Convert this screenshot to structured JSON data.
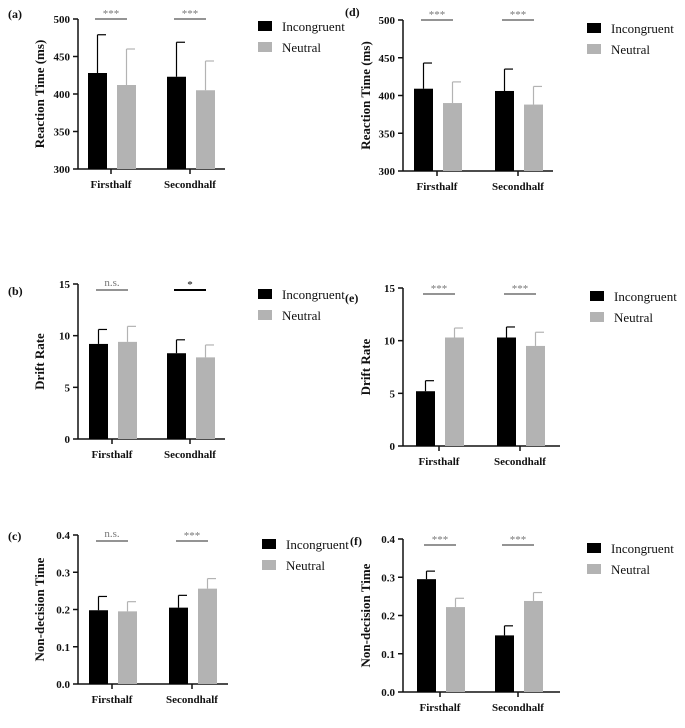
{
  "colors": {
    "Incongruent": "#000000",
    "Neutral": "#b3b3b3",
    "significance_text": "#777777"
  },
  "chart_data": [
    {
      "panel": "(a)",
      "type": "bar",
      "ylabel": "Reaction Time (ms)",
      "ylim": [
        300,
        500
      ],
      "yticks": [
        "300",
        "350",
        "400",
        "450",
        "500"
      ],
      "categories": [
        "Firsthalf",
        "Secondhalf"
      ],
      "series": [
        {
          "name": "Incongruent",
          "values": [
            428,
            423
          ],
          "error": [
            51,
            46
          ]
        },
        {
          "name": "Neutral",
          "values": [
            412,
            405
          ],
          "error": [
            48,
            39
          ]
        }
      ],
      "significance": [
        "***",
        "***"
      ],
      "legend": "right"
    },
    {
      "panel": "(b)",
      "type": "bar",
      "ylabel": "Drift Rate",
      "ylim": [
        0,
        15
      ],
      "yticks": [
        "0",
        "5",
        "10",
        "15"
      ],
      "categories": [
        "Firsthalf",
        "Secondhalf"
      ],
      "series": [
        {
          "name": "Incongruent",
          "values": [
            9.2,
            8.3
          ],
          "error": [
            1.4,
            1.3
          ]
        },
        {
          "name": "Neutral",
          "values": [
            9.4,
            7.9
          ],
          "error": [
            1.5,
            1.2
          ]
        }
      ],
      "significance": [
        "n.s.",
        "*"
      ],
      "legend": "right"
    },
    {
      "panel": "(c)",
      "type": "bar",
      "ylabel": "Non-decision Time",
      "ylim": [
        0,
        0.4
      ],
      "yticks": [
        "0.0",
        "0.1",
        "0.2",
        "0.3",
        "0.4"
      ],
      "categories": [
        "Firsthalf",
        "Secondhalf"
      ],
      "series": [
        {
          "name": "Incongruent",
          "values": [
            0.198,
            0.205
          ],
          "error": [
            0.037,
            0.033
          ]
        },
        {
          "name": "Neutral",
          "values": [
            0.195,
            0.256
          ],
          "error": [
            0.026,
            0.027
          ]
        }
      ],
      "significance": [
        "n.s.",
        "***"
      ],
      "legend": "right"
    },
    {
      "panel": "(d)",
      "type": "bar",
      "ylabel": "Reaction Time (ms)",
      "ylim": [
        300,
        500
      ],
      "yticks": [
        "300",
        "350",
        "400",
        "450",
        "500"
      ],
      "categories": [
        "Firsthalf",
        "Secondhalf"
      ],
      "series": [
        {
          "name": "Incongruent",
          "values": [
            409,
            406
          ],
          "error": [
            34,
            29
          ]
        },
        {
          "name": "Neutral",
          "values": [
            390,
            388
          ],
          "error": [
            28,
            24
          ]
        }
      ],
      "significance": [
        "***",
        "***"
      ],
      "legend": "right"
    },
    {
      "panel": "(e)",
      "type": "bar",
      "ylabel": "Drift Rate",
      "ylim": [
        0,
        15
      ],
      "yticks": [
        "0",
        "5",
        "10",
        "15"
      ],
      "categories": [
        "Firsthalf",
        "Secondhalf"
      ],
      "series": [
        {
          "name": "Incongruent",
          "values": [
            5.2,
            10.3
          ],
          "error": [
            1.0,
            1.0
          ]
        },
        {
          "name": "Neutral",
          "values": [
            10.3,
            9.5
          ],
          "error": [
            0.9,
            1.3
          ]
        }
      ],
      "significance": [
        "***",
        "***"
      ],
      "legend": "right"
    },
    {
      "panel": "(f)",
      "type": "bar",
      "ylabel": "Non-decision Time",
      "ylim": [
        0,
        0.4
      ],
      "yticks": [
        "0.0",
        "0.1",
        "0.2",
        "0.3",
        "0.4"
      ],
      "categories": [
        "Firsthalf",
        "Secondhalf"
      ],
      "series": [
        {
          "name": "Incongruent",
          "values": [
            0.295,
            0.148
          ],
          "error": [
            0.021,
            0.025
          ]
        },
        {
          "name": "Neutral",
          "values": [
            0.222,
            0.238
          ],
          "error": [
            0.023,
            0.022
          ]
        }
      ],
      "significance": [
        "***",
        "***"
      ],
      "legend": "right"
    }
  ]
}
